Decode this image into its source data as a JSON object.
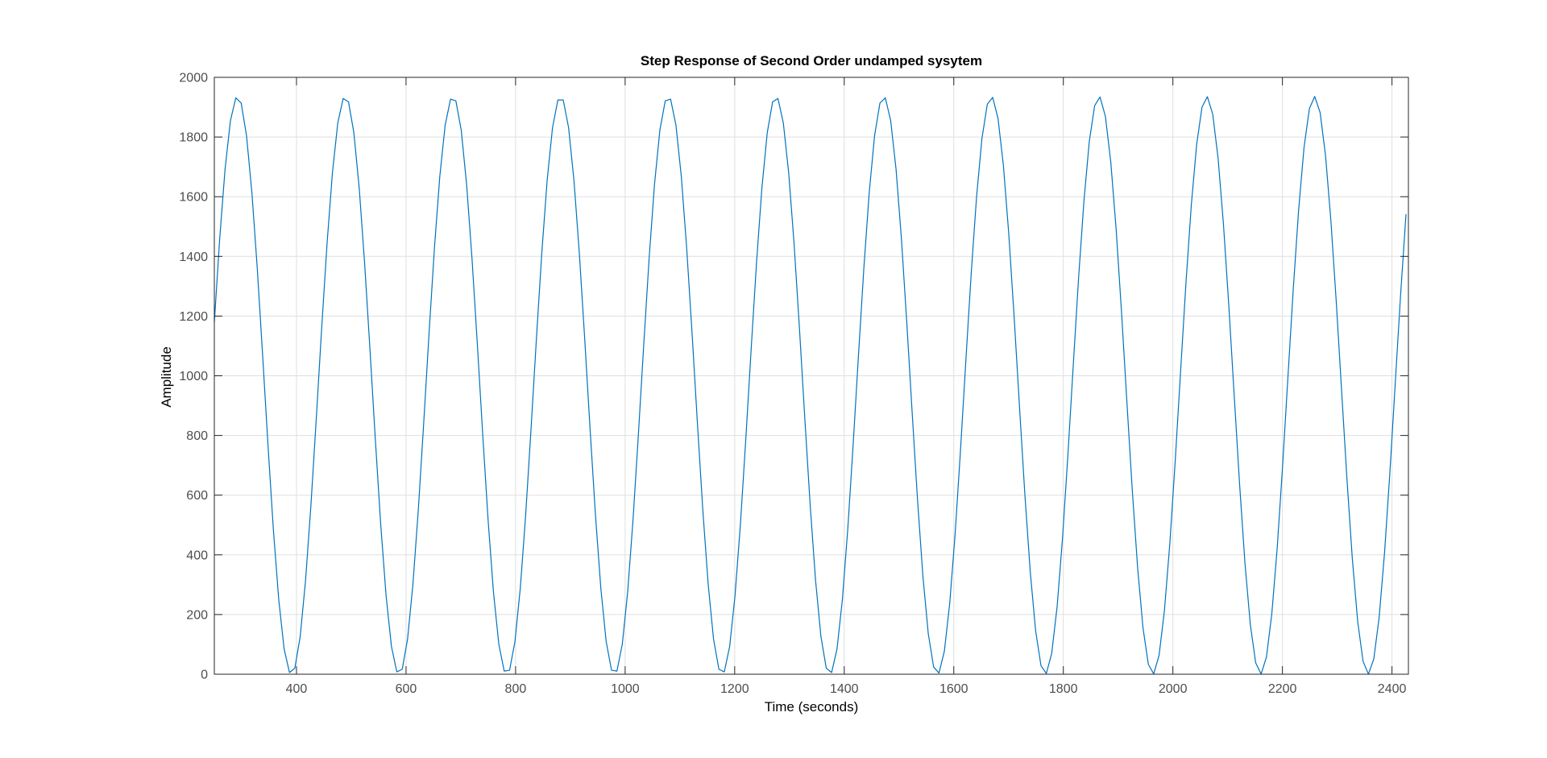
{
  "chart_data": {
    "type": "line",
    "title": "Step Response of Second Order undamped sysytem",
    "xlabel": "Time (seconds)",
    "ylabel": "Amplitude",
    "xlim": [
      250,
      2430
    ],
    "ylim": [
      0,
      2000
    ],
    "x_ticks": [
      400,
      600,
      800,
      1000,
      1200,
      1400,
      1600,
      1800,
      2000,
      2200,
      2400
    ],
    "x_tick_labels": [
      "400",
      "600",
      "800",
      "1000",
      "1200",
      "1400",
      "1600",
      "1800",
      "2000",
      "2200",
      "2400"
    ],
    "y_ticks": [
      0,
      200,
      400,
      600,
      800,
      1000,
      1200,
      1400,
      1600,
      1800,
      2000
    ],
    "y_tick_labels": [
      "0",
      "200",
      "400",
      "600",
      "800",
      "1000",
      "1200",
      "1400",
      "1600",
      "1800",
      "2000"
    ],
    "grid": true,
    "series": [
      {
        "color": "#0072bd",
        "signal": {
          "form": "offset - amplitude * cos(2*pi*(t - phase)/period)",
          "offset": 968,
          "amplitude": 968,
          "period": 196.6,
          "phase": 194,
          "t_start": 250,
          "t_end": 2430,
          "sample_step": 9.8
        }
      }
    ]
  },
  "colors": {
    "axis": "#262626",
    "grid": "#dfdfdf",
    "tick_text": "#4d4d4d",
    "line": "#0072bd",
    "background": "#ffffff"
  }
}
